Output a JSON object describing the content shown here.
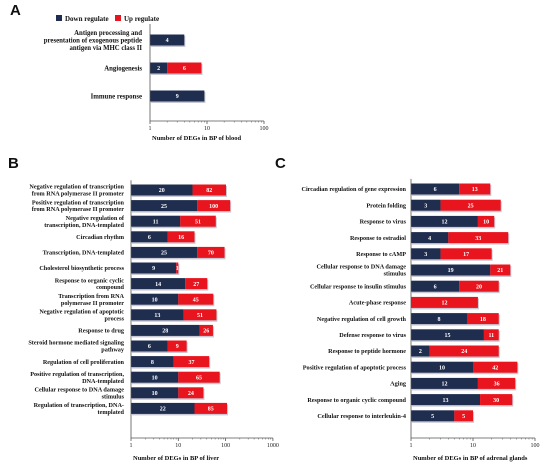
{
  "colors": {
    "down": "#1f2d4f",
    "up": "#e8141e",
    "axis": "#555555"
  },
  "legend": {
    "down_label": "Down regulate",
    "up_label": "Up regulate"
  },
  "chart_data": [
    {
      "panel": "A",
      "type": "bar",
      "orientation": "horizontal",
      "stacked": true,
      "xscale": "log",
      "xlim": [
        1,
        100
      ],
      "xticks": [
        "1",
        "10",
        "100"
      ],
      "xlabel": "Number of DEGs in BP of blood",
      "categories": [
        [
          "Antigen processing and",
          "presentation of exogenous peptide",
          "antigen via MHC class II"
        ],
        [
          "Angiogenesis"
        ],
        [
          "Immune response"
        ]
      ],
      "series": [
        {
          "name": "Down regulate",
          "values": [
            4,
            2,
            9
          ]
        },
        {
          "name": "Up regulate",
          "values": [
            0,
            6,
            0
          ]
        }
      ],
      "legend_position": "top"
    },
    {
      "panel": "B",
      "type": "bar",
      "orientation": "horizontal",
      "stacked": true,
      "xscale": "log",
      "xlim": [
        1,
        1000
      ],
      "xticks": [
        "1",
        "10",
        "100",
        "1000"
      ],
      "xlabel": "Number of DEGs in BP of liver",
      "categories": [
        [
          "Negative regulation of transcription",
          "from RNA polymerase II promoter"
        ],
        [
          "Positive regulation of transcription",
          "from RNA polymerase II promoter"
        ],
        [
          "Negative regulation of",
          "transcription, DNA-templated"
        ],
        [
          "Circadian rhythm"
        ],
        [
          "Transcription, DNA-templated"
        ],
        [
          "Cholesterol biosynthetic process"
        ],
        [
          "Response to organic cyclic",
          "compound"
        ],
        [
          "Transcription from RNA",
          "polymerase II promoter"
        ],
        [
          "Negative regulation of apoptotic",
          "process"
        ],
        [
          "Response to drug"
        ],
        [
          "Steroid hormone mediated signaling",
          "pathway"
        ],
        [
          "Regulation of cell proliferation"
        ],
        [
          "Positive regulation of transcription,",
          "DNA-templated"
        ],
        [
          "Cellular response to DNA damage",
          "stimulus"
        ],
        [
          "Regulation of transcription, DNA-",
          "templated"
        ]
      ],
      "series": [
        {
          "name": "Down regulate",
          "values": [
            20,
            25,
            11,
            6,
            25,
            9,
            14,
            10,
            13,
            28,
            6,
            8,
            10,
            10,
            22
          ]
        },
        {
          "name": "Up regulate",
          "values": [
            82,
            100,
            51,
            16,
            70,
            1,
            27,
            45,
            51,
            26,
            9,
            37,
            65,
            24,
            85
          ]
        }
      ]
    },
    {
      "panel": "C",
      "type": "bar",
      "orientation": "horizontal",
      "stacked": true,
      "xscale": "log",
      "xlim": [
        1,
        100
      ],
      "xticks": [
        "1",
        "10",
        "100"
      ],
      "xlabel": "Number of DEGs in BP of adrenal glands",
      "categories": [
        [
          "Circadian regulation of gene expression"
        ],
        [
          "Protein folding"
        ],
        [
          "Response to virus"
        ],
        [
          "Response to estradiol"
        ],
        [
          "Response to cAMP"
        ],
        [
          "Cellular response to DNA damage",
          "stimulus"
        ],
        [
          "Cellular response to insulin stimulus"
        ],
        [
          "Acute-phase response"
        ],
        [
          "Negative regulation of cell growth"
        ],
        [
          "Defense response to virus"
        ],
        [
          "Response to peptide hormone"
        ],
        [
          "Positive regulation of apoptotic process"
        ],
        [
          "Aging"
        ],
        [
          "Response to organic cyclic compound"
        ],
        [
          "Cellular response to interleukin-4"
        ]
      ],
      "series": [
        {
          "name": "Down regulate",
          "values": [
            6,
            3,
            12,
            4,
            3,
            19,
            6,
            0,
            8,
            15,
            2,
            10,
            12,
            13,
            5
          ]
        },
        {
          "name": "Up regulate",
          "values": [
            13,
            25,
            10,
            33,
            17,
            21,
            20,
            12,
            18,
            11,
            24,
            42,
            36,
            30,
            5
          ]
        }
      ]
    }
  ]
}
